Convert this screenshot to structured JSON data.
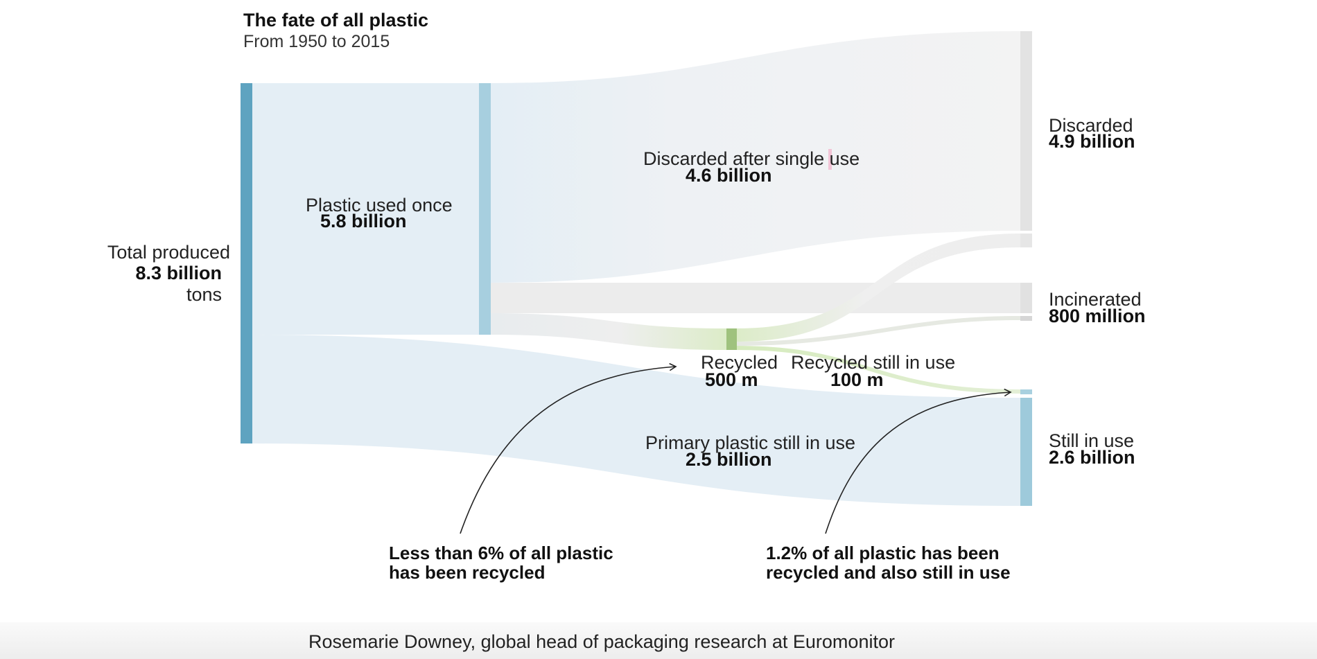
{
  "chart_data": {
    "type": "sankey",
    "title": "The fate of all plastic",
    "subtitle": "From 1950 to 2015",
    "nodes": [
      {
        "id": "total",
        "label": "Total produced",
        "value_label": "8.3 billion",
        "unit": "tons",
        "value": 8.3
      },
      {
        "id": "used_once",
        "label": "Plastic used once",
        "value_label": "5.8 billion",
        "value": 5.8
      },
      {
        "id": "recycled",
        "label": "Recycled",
        "value_label": "500 m",
        "value": 0.5
      },
      {
        "id": "discarded",
        "label": "Discarded",
        "value_label": "4.9 billion",
        "value": 4.9
      },
      {
        "id": "incinerated",
        "label": "Incinerated",
        "value_label": "800 million",
        "value": 0.8
      },
      {
        "id": "still_in_use",
        "label": "Still in use",
        "value_label": "2.6 billion",
        "value": 2.6
      }
    ],
    "links": [
      {
        "source": "total",
        "target": "used_once",
        "value": 5.8
      },
      {
        "source": "total",
        "target": "still_in_use",
        "value": 2.5,
        "label": "Primary plastic still in use",
        "value_label": "2.5 billion"
      },
      {
        "source": "used_once",
        "target": "discarded",
        "value": 4.6,
        "label": "Discarded after single use",
        "value_label": "4.6 billion"
      },
      {
        "source": "used_once",
        "target": "incinerated",
        "value": 0.7
      },
      {
        "source": "used_once",
        "target": "recycled",
        "value": 0.5
      },
      {
        "source": "recycled",
        "target": "discarded",
        "value": 0.3
      },
      {
        "source": "recycled",
        "target": "incinerated",
        "value": 0.1
      },
      {
        "source": "recycled",
        "target": "still_in_use",
        "value": 0.1,
        "label": "Recycled still in use",
        "value_label": "100 m"
      }
    ],
    "annotations": [
      {
        "id": "recycled_share",
        "text": "Less than 6% of all plastic\nhas been recycled"
      },
      {
        "id": "recycled_in_use_share",
        "text": "1.2% of all plastic has been\nrecycled and also still in use"
      }
    ],
    "colors": {
      "total_bar": "#5ea3c0",
      "used_once_bar": "#a7cfdf",
      "still_in_use_bar": "#9ecadb",
      "blue_flow": "#e4eef5",
      "grey_flow": "#eaeaea",
      "grey_bar": "#e1e1e1",
      "recycled_bar": "#9fc27e",
      "recycled_flow": "#d6ebbe"
    }
  },
  "caption": "Rosemarie Downey, global head of packaging research at Euromonitor"
}
